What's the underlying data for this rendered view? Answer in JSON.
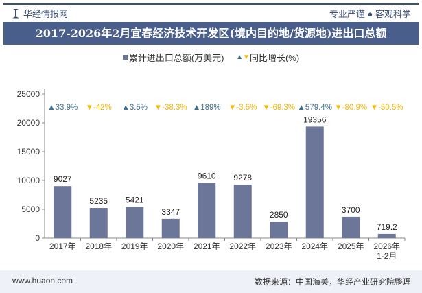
{
  "header": {
    "brand": "华经情报网",
    "slogan": "专业严谨 ● 客观科学",
    "title": "2017-2026年2月宜春经济技术开发区(境内目的地/货源地)进出口总额"
  },
  "footer": {
    "url": "www.huaon.com",
    "source": "数据来源：中国海关，华经产业研究院整理"
  },
  "colors": {
    "bar": "#6c7699",
    "up": "#3e6f8e",
    "down": "#f5b800",
    "header": "#4a5e8c"
  },
  "chart_data": {
    "type": "bar",
    "categories": [
      "2017年",
      "2018年",
      "2019年",
      "2020年",
      "2021年",
      "2022年",
      "2023年",
      "2024年",
      "2025年",
      "2026年\n1-2月"
    ],
    "series": [
      {
        "name": "累计进出口总额(万美元)",
        "values": [
          9027,
          5235,
          5421,
          3347,
          9610,
          9278,
          2850,
          19356,
          3700,
          719.2
        ]
      },
      {
        "name": "同比增长(%)",
        "values": [
          33.9,
          -42,
          3.5,
          -38.3,
          189,
          -3.5,
          -69.3,
          579.4,
          -80.9,
          -50.5
        ]
      }
    ],
    "value_labels": [
      "9027",
      "5235",
      "5421",
      "3347",
      "9610",
      "9278",
      "2850",
      "19356",
      "3700",
      "719.2"
    ],
    "growth_labels": [
      "33.9%",
      "-42%",
      "3.5%",
      "-38.3%",
      "189%",
      "-3.5%",
      "-69.3%",
      "579.4%",
      "-80.9%",
      "-50.5%"
    ],
    "yticks": [
      "0",
      "5000",
      "10000",
      "15000",
      "20000",
      "25000"
    ],
    "ylim": [
      0,
      25000
    ],
    "legend": {
      "bar": "累计进出口总额(万美元)",
      "growth": "同比增长(%)",
      "placement": "top"
    },
    "grid": false
  }
}
